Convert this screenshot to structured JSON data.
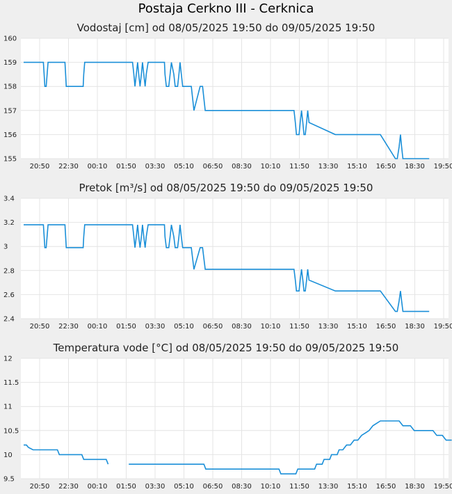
{
  "title": "Postaja Cerkno III - Cerknica",
  "line_color": "#1a8fd8",
  "grid_color": "#e4e4e4",
  "chart_data": [
    {
      "type": "line",
      "title": "Vodostaj [cm] od 08/05/2025 19:50 do 09/05/2025 19:50",
      "ylim": [
        155,
        160
      ],
      "yticks": [
        "155",
        "156",
        "157",
        "158",
        "159",
        "160"
      ],
      "xticks": [
        "20:50",
        "22:30",
        "00:10",
        "01:50",
        "03:30",
        "05:10",
        "06:50",
        "08:30",
        "10:10",
        "11:50",
        "13:30",
        "15:10",
        "16:50",
        "18:30",
        "19:50"
      ],
      "grid": true,
      "series": [
        {
          "x": [
            0,
            1.05,
            1.13,
            1.2,
            1.3,
            2.2,
            2.27,
            2.87,
            3.17,
            3.2,
            3.25,
            3.3,
            5.8,
            5.87,
            5.93,
            6.0,
            6.07,
            6.13,
            6.2,
            6.27,
            6.33,
            6.4,
            6.47,
            6.53,
            6.63,
            6.7,
            6.77,
            7.5,
            7.53,
            7.6,
            7.67,
            7.73,
            7.8,
            7.87,
            8.0,
            8.07,
            8.13,
            8.2,
            8.27,
            8.33,
            8.4,
            8.47,
            8.6,
            8.67,
            8.73,
            8.8,
            8.87,
            8.93,
            9.0,
            9.07,
            9.4,
            9.47,
            9.53,
            9.6,
            9.67,
            10.1,
            10.2,
            10.27,
            10.33,
            10.4,
            10.47,
            10.53,
            10.6,
            10.67,
            10.73,
            10.8,
            11.0,
            11.07,
            11.13,
            11.2,
            11.27,
            11.33,
            11.4,
            11.47,
            12.0,
            14.4,
            14.47,
            14.53,
            14.6,
            14.67,
            14.73,
            14.8,
            14.87,
            14.93,
            15.0,
            15.07,
            15.13,
            15.2,
            16.6,
            16.67,
            16.73,
            16.8,
            16.87,
            16.93,
            17.0,
            17.07,
            17.13,
            17.2,
            19.0,
            19.8,
            19.9,
            20.0,
            20.07,
            20.13,
            20.2,
            20.27,
            20.33,
            20.4,
            20.6,
            21.6
          ],
          "values": [
            159,
            159,
            158,
            158,
            159,
            159,
            158,
            158,
            158,
            158.5,
            159,
            159,
            159,
            158.5,
            158,
            158.5,
            159,
            158.5,
            158,
            158.5,
            159,
            158.5,
            158,
            158.5,
            159,
            159,
            159,
            159,
            158.5,
            158,
            158,
            158,
            158.5,
            159,
            158.5,
            158,
            158,
            158,
            158.5,
            159,
            158.5,
            158,
            158,
            158,
            158,
            158,
            158,
            158,
            157.5,
            157,
            158,
            158,
            158,
            157.5,
            157,
            157,
            157,
            157,
            157,
            157,
            157,
            157,
            157,
            157,
            157,
            157,
            157,
            157,
            157,
            157,
            157,
            157,
            157,
            157,
            157,
            157,
            156.5,
            156,
            156,
            156,
            156.5,
            157,
            156.5,
            156,
            156,
            156.5,
            157,
            156.5,
            156,
            156,
            156,
            156,
            156,
            156,
            156,
            156,
            156,
            156,
            156,
            155,
            155,
            155.5,
            156,
            155.5,
            155,
            155,
            155,
            155,
            155,
            155
          ]
        }
      ]
    },
    {
      "type": "line",
      "title": "Pretok [m³/s] od 08/05/2025 19:50 do 09/05/2025 19:50",
      "ylim": [
        2.4,
        3.4
      ],
      "yticks": [
        "2.4",
        "2.6",
        "2.8",
        "3",
        "3.2",
        "3.4"
      ],
      "xticks": [
        "20:50",
        "22:30",
        "00:10",
        "01:50",
        "03:30",
        "05:10",
        "06:50",
        "08:30",
        "10:10",
        "11:50",
        "13:30",
        "15:10",
        "16:50",
        "18:30",
        "19:50"
      ],
      "grid": true,
      "series": [
        {
          "x": [
            0,
            1.05,
            1.13,
            1.2,
            1.3,
            2.2,
            2.27,
            2.87,
            3.17,
            3.2,
            3.25,
            3.3,
            5.8,
            5.87,
            5.93,
            6.0,
            6.07,
            6.13,
            6.2,
            6.27,
            6.33,
            6.4,
            6.47,
            6.53,
            6.63,
            6.7,
            6.77,
            7.5,
            7.53,
            7.6,
            7.67,
            7.73,
            7.8,
            7.87,
            8.0,
            8.07,
            8.13,
            8.2,
            8.27,
            8.33,
            8.4,
            8.47,
            8.6,
            8.67,
            8.73,
            8.8,
            8.87,
            8.93,
            9.0,
            9.07,
            9.4,
            9.47,
            9.53,
            9.6,
            9.67,
            10.1,
            10.2,
            10.27,
            10.33,
            10.4,
            10.47,
            10.53,
            10.6,
            10.67,
            10.73,
            10.8,
            11.0,
            11.07,
            11.13,
            11.2,
            11.27,
            11.33,
            11.4,
            11.47,
            12.0,
            14.4,
            14.47,
            14.53,
            14.6,
            14.67,
            14.73,
            14.8,
            14.87,
            14.93,
            15.0,
            15.07,
            15.13,
            15.2,
            16.6,
            16.67,
            16.73,
            16.8,
            16.87,
            16.93,
            17.0,
            17.07,
            17.13,
            17.2,
            19.0,
            19.8,
            19.9,
            20.0,
            20.07,
            20.13,
            20.2,
            20.27,
            20.33,
            20.4,
            20.6,
            21.6
          ],
          "values": [
            3.18,
            3.18,
            2.99,
            2.99,
            3.18,
            3.18,
            2.99,
            2.99,
            2.99,
            3.08,
            3.18,
            3.18,
            3.18,
            3.08,
            2.99,
            3.08,
            3.18,
            3.08,
            2.99,
            3.08,
            3.18,
            3.08,
            2.99,
            3.08,
            3.18,
            3.18,
            3.18,
            3.18,
            3.08,
            2.99,
            2.99,
            2.99,
            3.08,
            3.18,
            3.08,
            2.99,
            2.99,
            2.99,
            3.08,
            3.18,
            3.08,
            2.99,
            2.99,
            2.99,
            2.99,
            2.99,
            2.99,
            2.99,
            2.9,
            2.81,
            2.99,
            2.99,
            2.99,
            2.9,
            2.81,
            2.81,
            2.81,
            2.81,
            2.81,
            2.81,
            2.81,
            2.81,
            2.81,
            2.81,
            2.81,
            2.81,
            2.81,
            2.81,
            2.81,
            2.81,
            2.81,
            2.81,
            2.81,
            2.81,
            2.81,
            2.81,
            2.72,
            2.63,
            2.63,
            2.63,
            2.72,
            2.81,
            2.72,
            2.63,
            2.63,
            2.72,
            2.81,
            2.72,
            2.63,
            2.63,
            2.63,
            2.63,
            2.63,
            2.63,
            2.63,
            2.63,
            2.63,
            2.63,
            2.63,
            2.46,
            2.46,
            2.55,
            2.63,
            2.55,
            2.46,
            2.46,
            2.46,
            2.46,
            2.46,
            2.46
          ]
        }
      ]
    },
    {
      "type": "line",
      "title": "Temperatura vode [°C] od 08/05/2025 19:50 do 09/05/2025 19:50",
      "ylim": [
        9.5,
        12
      ],
      "yticks": [
        "9.5",
        "10",
        "10.5",
        "11",
        "11.5",
        "12"
      ],
      "xticks": [
        "20:50",
        "22:30",
        "00:10",
        "01:50",
        "03:30",
        "05:10",
        "06:50",
        "08:30",
        "10:10",
        "11:50",
        "13:30",
        "15:10",
        "16:50",
        "18:30",
        "19:50"
      ],
      "grid": true,
      "series": [
        {
          "x": [
            0,
            0.15,
            0.25,
            0.5,
            1.2,
            1.8,
            1.9,
            3.1,
            3.2,
            4.4,
            4.5,
            4.5,
            5.6,
            5.7,
            7.4,
            9.6,
            9.7,
            13.6,
            13.7,
            13.7,
            14.5,
            14.6,
            15.0,
            15.1,
            15.5,
            15.6,
            15.9,
            16.0,
            16.3,
            16.4,
            16.7,
            16.8,
            17.0,
            17.2,
            17.4,
            17.6,
            17.8,
            18.0,
            18.2,
            18.4,
            18.6,
            18.8,
            19.0,
            19.2,
            19.4,
            19.6,
            20.0,
            20.2,
            20.6,
            20.8,
            21.0,
            21.2,
            21.8,
            22.0,
            22.3,
            22.5,
            22.8
          ],
          "values": [
            10.2,
            10.2,
            10.15,
            10.1,
            10.1,
            10.1,
            10.0,
            10.0,
            9.9,
            9.9,
            9.8,
            null,
            9.8,
            9.8,
            9.8,
            9.8,
            9.7,
            9.7,
            9.6,
            9.6,
            9.6,
            9.7,
            9.7,
            9.7,
            9.7,
            9.8,
            9.8,
            9.9,
            9.9,
            10.0,
            10.0,
            10.1,
            10.1,
            10.2,
            10.2,
            10.3,
            10.3,
            10.4,
            10.45,
            10.5,
            10.6,
            10.65,
            10.7,
            10.7,
            10.7,
            10.7,
            10.7,
            10.6,
            10.6,
            10.5,
            10.5,
            10.5,
            10.5,
            10.4,
            10.4,
            10.3,
            10.3
          ]
        }
      ]
    }
  ]
}
